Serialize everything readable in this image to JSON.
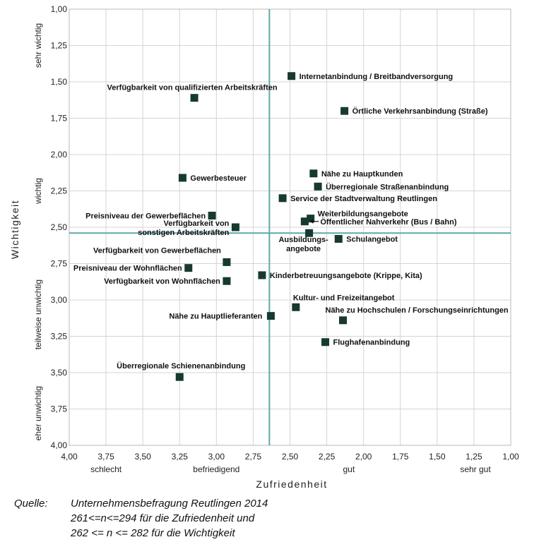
{
  "chart_data": {
    "type": "scatter",
    "xlabel": "Zufriedenheit",
    "ylabel": "Wichtigkeit",
    "xlim": [
      4.0,
      1.0
    ],
    "ylim": [
      1.0,
      4.0
    ],
    "x_reversed": true,
    "y_reversed": true,
    "grid": true,
    "xticks": [
      "4,00",
      "3,75",
      "3,50",
      "3,25",
      "3,00",
      "2,75",
      "2,50",
      "2,25",
      "2,00",
      "1,75",
      "1,50",
      "1,25",
      "1,00"
    ],
    "yticks": [
      "1,00",
      "1,25",
      "1,50",
      "1,75",
      "2,00",
      "2,25",
      "2,50",
      "2,75",
      "3,00",
      "3,25",
      "3,50",
      "3,75",
      "4,00"
    ],
    "x_categories": [
      {
        "label": "schlecht",
        "at": 3.75
      },
      {
        "label": "befriedigend",
        "at": 3.0
      },
      {
        "label": "gut",
        "at": 2.1
      },
      {
        "label": "sehr gut",
        "at": 1.24
      }
    ],
    "y_categories": [
      {
        "label": "sehr wichtig",
        "at": 1.25
      },
      {
        "label": "wichtig",
        "at": 2.25
      },
      {
        "label": "teilweise unwichtig",
        "at": 3.1
      },
      {
        "label": "eher unwichtig",
        "at": 3.78
      }
    ],
    "reference_lines": {
      "x": 2.64,
      "y": 2.54,
      "color": "#5fa8a8"
    },
    "marker_color": "#163a30",
    "points": [
      {
        "label": "Internetanbindung / Breitbandversorgung",
        "x": 2.49,
        "y": 1.46
      },
      {
        "label": "Verfügbarkeit von qualifizierten Arbeitskräften",
        "x": 3.15,
        "y": 1.61
      },
      {
        "label": "Örtliche Verkehrsanbindung (Straße)",
        "x": 2.13,
        "y": 1.7
      },
      {
        "label": "Gewerbesteuer",
        "x": 3.23,
        "y": 2.16
      },
      {
        "label": "Nähe zu Hauptkunden",
        "x": 2.34,
        "y": 2.13
      },
      {
        "label": "Überregionale Straßenanbindung",
        "x": 2.31,
        "y": 2.22
      },
      {
        "label": "Service der Stadtverwaltung Reutlingen",
        "x": 2.55,
        "y": 2.3
      },
      {
        "label": "Preisniveau der Gewerbeflächen",
        "x": 3.03,
        "y": 2.42
      },
      {
        "label": "Weiterbildungsangebote",
        "x": 2.36,
        "y": 2.44
      },
      {
        "label": "Öffentlicher Nahverkehr (Bus / Bahn)",
        "x": 2.4,
        "y": 2.46
      },
      {
        "label": "Verfügbarkeit von sonstigen Arbeitskräften",
        "x": 2.87,
        "y": 2.5
      },
      {
        "label": "Ausbildungsangebote",
        "x": 2.37,
        "y": 2.54
      },
      {
        "label": "Schulangebot",
        "x": 2.17,
        "y": 2.58
      },
      {
        "label": "Verfügbarkeit von Gewerbeflächen",
        "x": 2.93,
        "y": 2.74
      },
      {
        "label": "Preisniveau der Wohnflächen",
        "x": 3.19,
        "y": 2.78
      },
      {
        "label": "Kinderbetreuungsangebote (Krippe, Kita)",
        "x": 2.69,
        "y": 2.83
      },
      {
        "label": "Verfügbarkeit von Wohnflächen",
        "x": 2.93,
        "y": 2.87
      },
      {
        "label": "Kultur- und Freizeitangebot",
        "x": 2.46,
        "y": 3.05
      },
      {
        "label": "Nähe zu Hauptlieferanten",
        "x": 2.63,
        "y": 3.11
      },
      {
        "label": "Nähe zu Hochschulen / Forschungseinrichtungen",
        "x": 2.14,
        "y": 3.14
      },
      {
        "label": "Flughafenanbindung",
        "x": 2.26,
        "y": 3.29
      },
      {
        "label": "Überregionale Schienenanbindung",
        "x": 3.25,
        "y": 3.53
      }
    ]
  },
  "source": {
    "key": "Quelle:",
    "line1": "Unternehmensbefragung Reutlingen 2014",
    "line2": "261<=n<=294 für die Zufriedenheit und",
    "line3": "262 <= n <= 282 für die Wichtigkeit"
  }
}
